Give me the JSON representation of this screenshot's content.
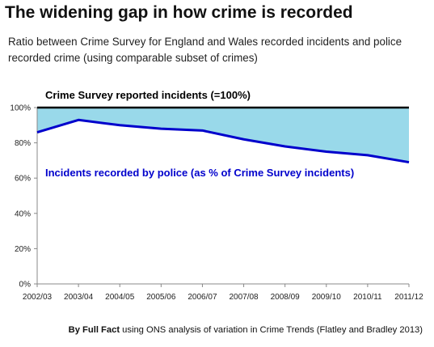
{
  "header": {
    "title": "The widening gap in how crime is recorded",
    "subtitle": "Ratio between Crime Survey for England and Wales recorded incidents and police recorded crime (using comparable subset of crimes)"
  },
  "footer": {
    "source_bold": "By Full Fact",
    "source_rest": " using ONS analysis of variation in Crime Trends (Flatley and Bradley 2013)"
  },
  "chart_data": {
    "type": "area",
    "categories": [
      "2002/03",
      "2003/04",
      "2004/05",
      "2005/06",
      "2006/07",
      "2007/08",
      "2008/09",
      "2009/10",
      "2010/11",
      "2011/12"
    ],
    "series": [
      {
        "name": "Crime Survey reported incidents (=100%)",
        "values": [
          100,
          100,
          100,
          100,
          100,
          100,
          100,
          100,
          100,
          100
        ],
        "color": "#000000"
      },
      {
        "name": "Incidents recorded by police (as % of Crime Survey incidents)",
        "values": [
          86,
          93,
          90,
          88,
          87,
          82,
          78,
          75,
          73,
          69
        ],
        "color": "#0000cc"
      }
    ],
    "gap_fill_color": "#99d9ea",
    "yticks": [
      "0%",
      "20%",
      "40%",
      "60%",
      "80%",
      "100%"
    ],
    "ylim": [
      0,
      100
    ],
    "xlabel": "",
    "ylabel": ""
  }
}
